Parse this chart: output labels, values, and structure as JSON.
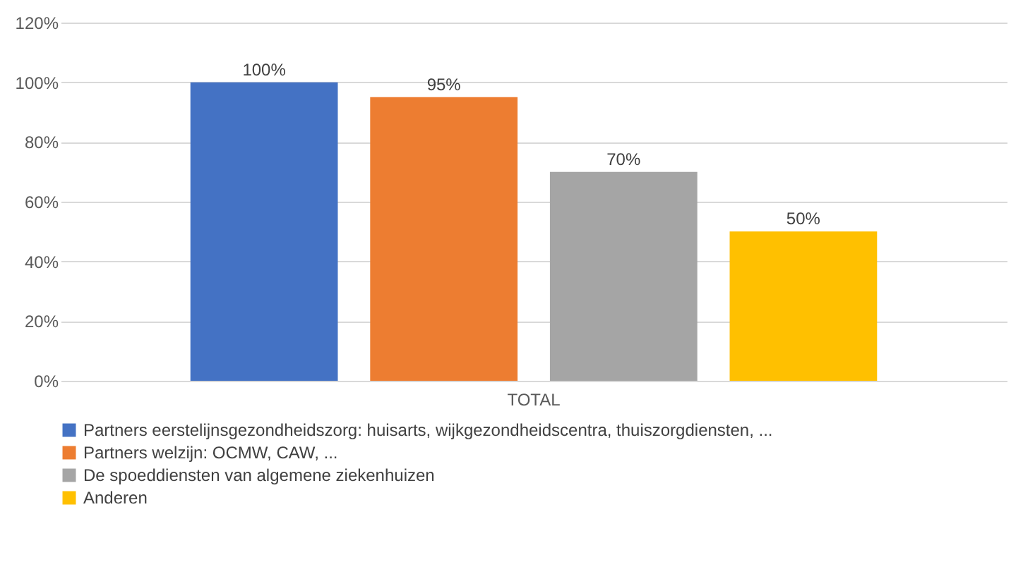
{
  "chart_data": {
    "type": "bar",
    "categories": [
      "TOTAL"
    ],
    "series": [
      {
        "name": "Partners eerstelijnsgezondheidszorg: huisarts, wijkgezondheidscentra, thuiszorgdiensten, ...",
        "color": "#4472c4",
        "values": [
          100
        ],
        "value_labels": [
          "100%"
        ]
      },
      {
        "name": "Partners welzijn: OCMW, CAW, ...",
        "color": "#ed7d31",
        "values": [
          95
        ],
        "value_labels": [
          "95%"
        ]
      },
      {
        "name": "De spoeddiensten van algemene ziekenhuizen",
        "color": "#a5a5a5",
        "values": [
          70
        ],
        "value_labels": [
          "70%"
        ]
      },
      {
        "name": "Anderen",
        "color": "#ffc000",
        "values": [
          50
        ],
        "value_labels": [
          "50%"
        ]
      }
    ],
    "ylim": [
      0,
      120
    ],
    "yticks": [
      {
        "value": 0,
        "label": "0%"
      },
      {
        "value": 20,
        "label": "20%"
      },
      {
        "value": 40,
        "label": "40%"
      },
      {
        "value": 60,
        "label": "60%"
      },
      {
        "value": 80,
        "label": "80%"
      },
      {
        "value": 100,
        "label": "100%"
      },
      {
        "value": 120,
        "label": "120%"
      }
    ],
    "grid": "y",
    "legend": "bottom"
  }
}
